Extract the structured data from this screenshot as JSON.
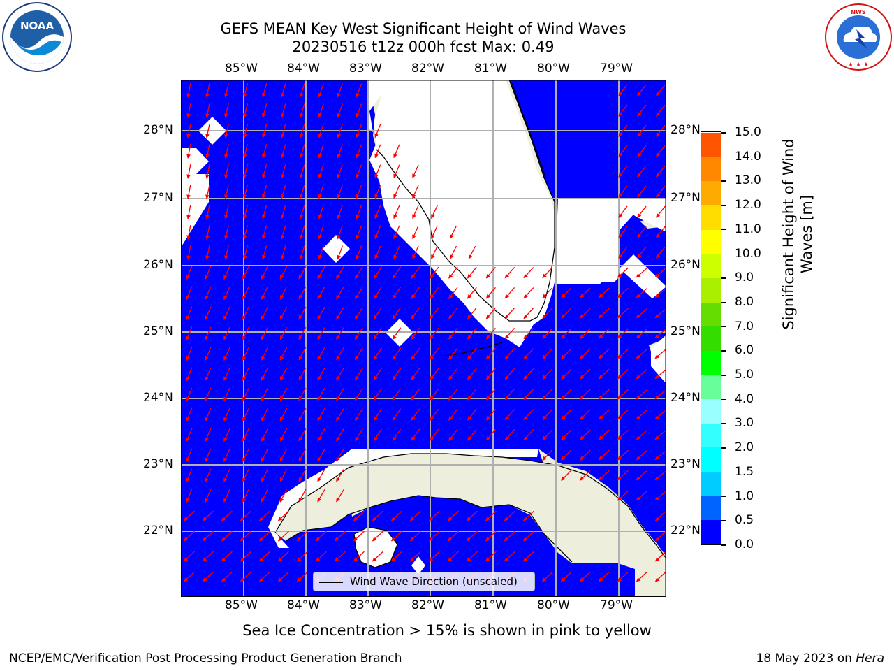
{
  "header": {
    "title_line1": "GEFS MEAN Key West Significant Height of Wind Waves",
    "title_line2": "20230516 t12z 000h fcst   Max: 0.49"
  },
  "logos": {
    "left": "NOAA",
    "left_ring_text": "NATIONAL OCEANIC AND ATMOSPHERIC ADMINISTRATION · U.S. DEPARTMENT OF COMMERCE",
    "right_ring_text": "NATIONAL WEATHER SERVICE"
  },
  "map": {
    "lon_labels": [
      "85°W",
      "84°W",
      "83°W",
      "82°W",
      "81°W",
      "80°W",
      "79°W"
    ],
    "lat_labels": [
      "28°N",
      "27°N",
      "26°N",
      "25°N",
      "24°N",
      "23°N",
      "22°N"
    ],
    "ocean_color": "#0000ff",
    "land_color": "#eeeedd",
    "arrow_color": "#ff0000",
    "legend_label": "Wind Wave Direction (unscaled)"
  },
  "colorbar": {
    "title_line1": "Significant Height of Wind",
    "title_line2": "Waves [m]",
    "tick_labels": [
      "15.0",
      "14.0",
      "13.0",
      "12.0",
      "11.0",
      "10.0",
      "9.0",
      "8.0",
      "7.0",
      "6.0",
      "5.0",
      "4.0",
      "3.0",
      "2.0",
      "1.5",
      "1.0",
      "0.5",
      "0.0"
    ],
    "colors_bottom_to_top": [
      "#0000ff",
      "#0064ff",
      "#00ccff",
      "#00ffff",
      "#33ffff",
      "#99ffff",
      "#66ff99",
      "#00ff00",
      "#33dd00",
      "#66dd00",
      "#aaee00",
      "#ccff00",
      "#ffff00",
      "#ffdd00",
      "#ffaa00",
      "#ff8800",
      "#ff5500",
      "#ff2200",
      "#ff0000"
    ]
  },
  "note": "Sea Ice Concentration > 15% is shown in pink to yellow",
  "footer": {
    "left": "NCEP/EMC/Verification Post Processing Product Generation Branch",
    "right_date": "18 May 2023 on ",
    "right_host": "Hera"
  }
}
